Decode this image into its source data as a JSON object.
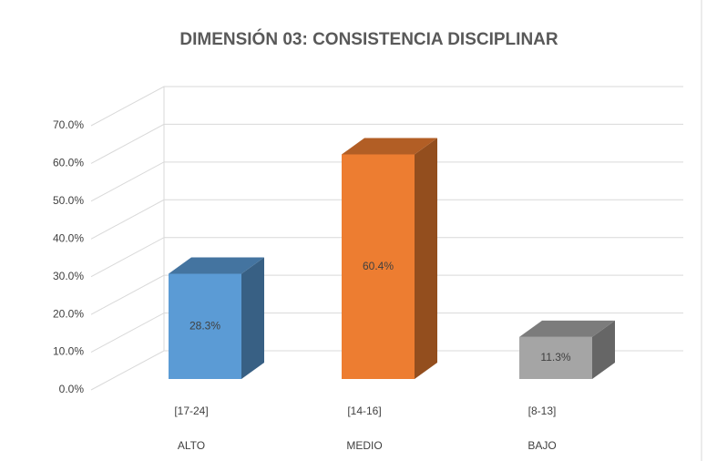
{
  "chart_data": {
    "type": "bar3d",
    "title": "DIMENSIÓN 03: CONSISTENCIA DISCIPLINAR",
    "categories": [
      "[17-24]",
      "[14-16]",
      "[8-13]"
    ],
    "levels": [
      "ALTO",
      "MEDIO",
      "BAJO"
    ],
    "values": [
      28.3,
      60.4,
      11.3
    ],
    "value_labels": [
      "28.3%",
      "60.4%",
      "11.3%"
    ],
    "colors": [
      "#5b9bd5",
      "#ed7d31",
      "#a5a5a5"
    ],
    "ylim": [
      0,
      70
    ],
    "yticks": [
      {
        "value": 0,
        "label": "0.0%"
      },
      {
        "value": 10,
        "label": "10.0%"
      },
      {
        "value": 20,
        "label": "20.0%"
      },
      {
        "value": 30,
        "label": "30.0%"
      },
      {
        "value": 40,
        "label": "40.0%"
      },
      {
        "value": 50,
        "label": "50.0%"
      },
      {
        "value": 60,
        "label": "60.0%"
      },
      {
        "value": 70,
        "label": "70.0%"
      }
    ],
    "grid": true
  }
}
